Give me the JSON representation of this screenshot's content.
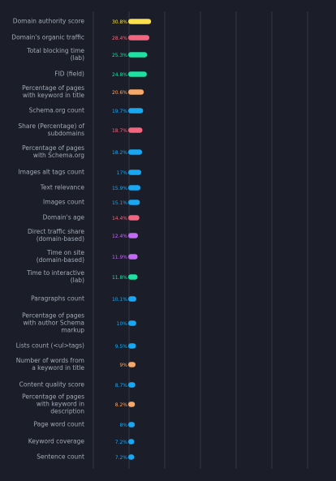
{
  "chart_data": {
    "type": "bar",
    "orientation": "horizontal",
    "grid": true,
    "xlim": [
      0,
      100
    ],
    "categories": [
      [
        "Domain authority score"
      ],
      [
        "Domain's organic traffic"
      ],
      [
        "Total blocking time",
        "(lab)"
      ],
      [
        "FID (field)"
      ],
      [
        "Percentage of pages",
        "with keyword in title"
      ],
      [
        "Schema.org count"
      ],
      [
        "Share (Percentage) of",
        "subdomains"
      ],
      [
        "Percentage of pages",
        "with Schema.org"
      ],
      [
        "Images alt tags count"
      ],
      [
        "Text relevance"
      ],
      [
        "Images count"
      ],
      [
        "Domain's age"
      ],
      [
        "Direct traffic share",
        "(domain-based)"
      ],
      [
        "Time on site",
        "(domain-based)"
      ],
      [
        "Time to interactive",
        "(lab)"
      ],
      [
        "Paragraphs count"
      ],
      [
        "Percentage of pages",
        "with author Schema",
        "markup"
      ],
      [
        "Lists count (<ul>tags)"
      ],
      [
        "Number of words from",
        "a keyword in title"
      ],
      [
        "Content quality score"
      ],
      [
        "Percentage of pages",
        "with keyword in",
        "description"
      ],
      [
        "Page word count"
      ],
      [
        "Keyword coverage"
      ],
      [
        "Sentence count"
      ]
    ],
    "values": [
      30.8,
      28.4,
      25.3,
      24.8,
      20.6,
      19.7,
      18.7,
      18.2,
      17,
      15.9,
      15.1,
      14.4,
      12.4,
      11.9,
      11.8,
      10.1,
      10,
      9.5,
      9,
      8.7,
      8.2,
      8,
      7.2,
      7.2
    ],
    "value_labels": [
      "30.8%",
      "28.4%",
      "25.3%",
      "24.8%",
      "20.6%",
      "19.7%",
      "18.7%",
      "18.2%",
      "17%",
      "15.9%",
      "15.1%",
      "14.4%",
      "12.4%",
      "11.9%",
      "11.8%",
      "10.1%",
      "10%",
      "9.5%",
      "9%",
      "8.7%",
      "8.2%",
      "8%",
      "7.2%",
      "7.2%"
    ],
    "colors": [
      "#f9e04c",
      "#f0667e",
      "#1ee0a2",
      "#1ee0a2",
      "#f6a86a",
      "#1aa7f2",
      "#f0667e",
      "#1aa7f2",
      "#1aa7f2",
      "#1aa7f2",
      "#1aa7f2",
      "#f0667e",
      "#c26af2",
      "#c26af2",
      "#1ee0a2",
      "#1aa7f2",
      "#1aa7f2",
      "#1aa7f2",
      "#f6a86a",
      "#1aa7f2",
      "#f6a86a",
      "#1aa7f2",
      "#1aa7f2",
      "#1aa7f2"
    ]
  }
}
